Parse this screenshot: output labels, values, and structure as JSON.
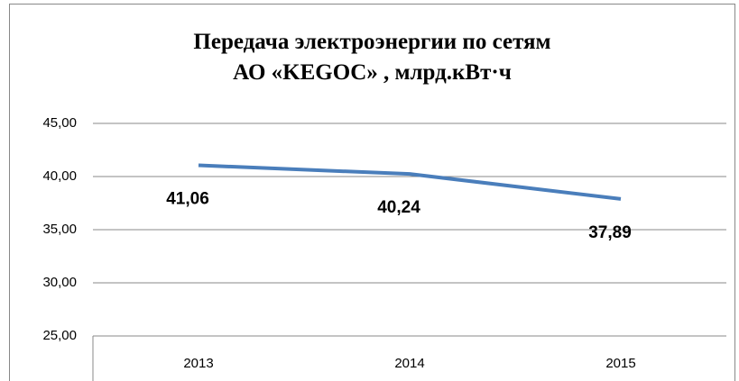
{
  "chart_data": {
    "type": "line",
    "title": "Передача электроэнергии по сетям\nАО «KEGOC» , млрд.кВт·ч",
    "categories": [
      "2013",
      "2014",
      "2015"
    ],
    "values": [
      41.06,
      40.24,
      37.89
    ],
    "value_labels": [
      "41,06",
      "40,24",
      "37,89"
    ],
    "color": "#4a7ebb",
    "ylim": [
      25,
      45
    ],
    "yticks": [
      {
        "value": 25,
        "label": "25,00"
      },
      {
        "value": 30,
        "label": "30,00"
      },
      {
        "value": 35,
        "label": "35,00"
      },
      {
        "value": 40,
        "label": "40,00"
      },
      {
        "value": 45,
        "label": "45,00"
      }
    ],
    "grid": true
  }
}
